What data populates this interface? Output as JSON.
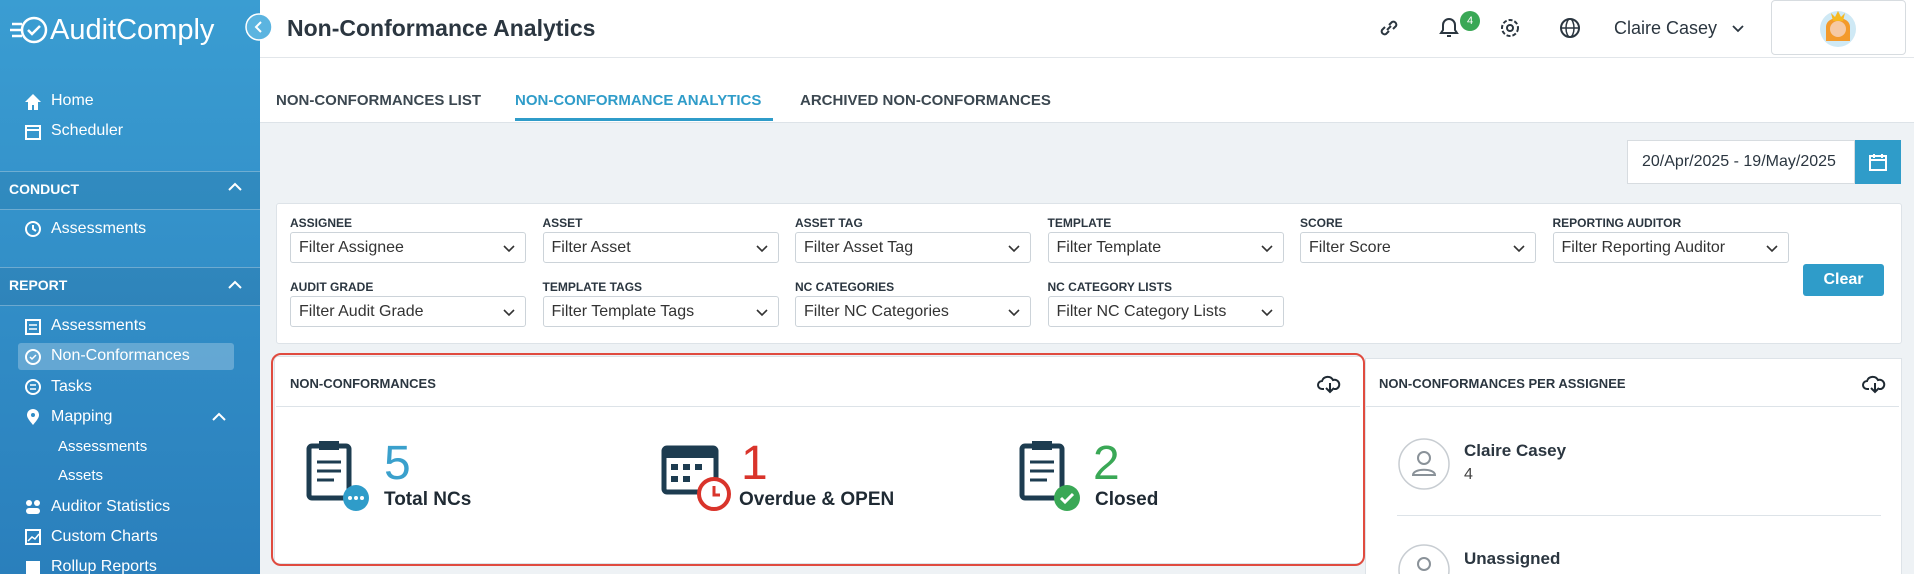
{
  "header": {
    "logo": "AuditComply",
    "title": "Non-Conformance Analytics",
    "notification_count": 4,
    "user_name": "Claire Casey"
  },
  "sidebar": {
    "home": "Home",
    "scheduler": "Scheduler",
    "conduct": {
      "title": "CONDUCT",
      "items": [
        "Assessments"
      ]
    },
    "report": {
      "title": "REPORT",
      "items": [
        "Assessments",
        "Non-Conformances",
        "Tasks",
        "Mapping"
      ],
      "mapping_items": [
        "Assessments",
        "Assets"
      ],
      "more_items": [
        "Auditor Statistics",
        "Custom Charts",
        "Rollup Reports"
      ]
    }
  },
  "tabs": [
    "NON-CONFORMANCES LIST",
    "NON-CONFORMANCE ANALYTICS",
    "ARCHIVED NON-CONFORMANCES"
  ],
  "date_range": "20/Apr/2025 - 19/May/2025",
  "filters": [
    {
      "label": "ASSIGNEE",
      "placeholder": "Filter Assignee"
    },
    {
      "label": "ASSET",
      "placeholder": "Filter Asset"
    },
    {
      "label": "ASSET TAG",
      "placeholder": "Filter Asset Tag"
    },
    {
      "label": "TEMPLATE",
      "placeholder": "Filter Template"
    },
    {
      "label": "SCORE",
      "placeholder": "Filter Score"
    },
    {
      "label": "REPORTING AUDITOR",
      "placeholder": "Filter Reporting Auditor"
    },
    {
      "label": "AUDIT GRADE",
      "placeholder": "Filter Audit Grade"
    },
    {
      "label": "TEMPLATE TAGS",
      "placeholder": "Filter Template Tags"
    },
    {
      "label": "NC CATEGORIES",
      "placeholder": "Filter NC Categories"
    },
    {
      "label": "NC CATEGORY LISTS",
      "placeholder": "Filter NC Category Lists"
    }
  ],
  "clear_button": "Clear",
  "nc_card": {
    "title": "NON-CONFORMANCES",
    "stats": [
      {
        "value": 5,
        "label": "Total NCs"
      },
      {
        "value": 1,
        "label": "Overdue & OPEN"
      },
      {
        "value": 2,
        "label": "Closed"
      }
    ]
  },
  "assignee_card": {
    "title": "NON-CONFORMANCES PER ASSIGNEE",
    "assignees": [
      {
        "name": "Claire Casey",
        "count": 4
      },
      {
        "name": "Unassigned"
      }
    ]
  }
}
